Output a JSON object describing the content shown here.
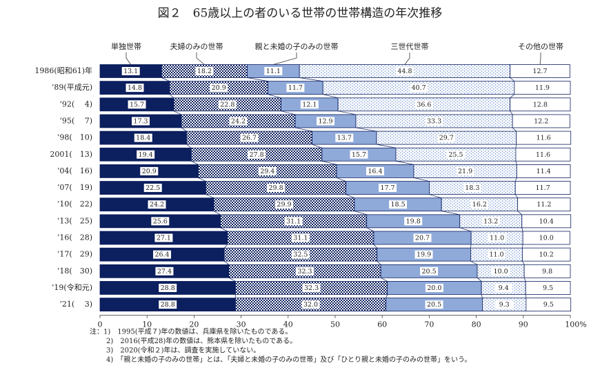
{
  "chart_data": {
    "type": "stacked-bar-horizontal",
    "title": "図２　65歳以上の者のいる世帯の世帯構造の年次推移",
    "categories": [
      "1986(昭和61)年",
      "’89(平成元)",
      "’92(　 4)",
      "’95(　 7)",
      "’98(　10)",
      "2001(　13)",
      "’04(　16)",
      "’07(　19)",
      "’10(　22)",
      "’13(　25)",
      "’16(　28)",
      "’17(　29)",
      "’18(　30)",
      "’19(令和元)",
      "’21(　 3)"
    ],
    "series": [
      {
        "name": "単独世帯",
        "color": "#0c1f5e",
        "pattern": "solid",
        "values": [
          13.1,
          14.8,
          15.7,
          17.3,
          18.4,
          19.4,
          20.9,
          22.5,
          24.2,
          25.6,
          27.1,
          26.4,
          27.4,
          28.8,
          28.8
        ],
        "value_labels": [
          "13.1",
          "14.8",
          "15.7",
          "17.3",
          "18.4",
          "19.4",
          "20.9",
          "22.5",
          "24.2",
          "25.6",
          "27.1",
          "26.4",
          "27.4",
          "28.8",
          "28.8"
        ]
      },
      {
        "name": "夫婦のみの世帯",
        "color": "#0c1f5e",
        "pattern": "checker",
        "values": [
          18.2,
          20.9,
          22.8,
          24.2,
          26.7,
          27.8,
          29.4,
          29.8,
          29.9,
          31.1,
          31.1,
          32.5,
          32.3,
          32.3,
          32.0
        ],
        "value_labels": [
          "18.2",
          "20.9",
          "22.8",
          "24.2",
          "26.7",
          "27.8",
          "29.4",
          "29.8",
          "29.9",
          "31.1",
          "31.1",
          "32.5",
          "32.3",
          "32.3",
          "32.0"
        ]
      },
      {
        "name": "親と未婚の子のみの世帯",
        "color": "#8fa9d9",
        "pattern": "solid",
        "values": [
          11.1,
          11.7,
          12.1,
          12.9,
          13.7,
          15.7,
          16.4,
          17.7,
          18.5,
          19.8,
          20.7,
          19.9,
          20.5,
          20.0,
          20.5
        ],
        "value_labels": [
          "11.1",
          "11.7",
          "12.1",
          "12.9",
          "13.7",
          "15.7",
          "16.4",
          "17.7",
          "18.5",
          "19.8",
          "20.7",
          "19.9",
          "20.5",
          "20.0",
          "20.5"
        ]
      },
      {
        "name": "三世代世帯",
        "color": "#5a82c8",
        "pattern": "dots",
        "values": [
          44.8,
          40.7,
          36.6,
          33.3,
          29.7,
          25.5,
          21.9,
          18.3,
          16.2,
          13.2,
          11.0,
          11.0,
          10.0,
          9.4,
          9.3
        ],
        "value_labels": [
          "44.8",
          "40.7",
          "36.6",
          "33.3",
          "29.7",
          "25.5",
          "21.9",
          "18.3",
          "16.2",
          "13.2",
          "11.0",
          "11.0",
          "10.0",
          "9.4",
          "9.3"
        ]
      },
      {
        "name": "その他の世帯",
        "color": "#ffffff",
        "pattern": "solid",
        "values": [
          12.7,
          11.9,
          12.8,
          12.2,
          11.6,
          11.6,
          11.4,
          11.7,
          11.2,
          10.4,
          10.0,
          10.2,
          9.8,
          9.5,
          9.5
        ],
        "value_labels": [
          "12.7",
          "11.9",
          "12.8",
          "12.2",
          "11.6",
          "11.6",
          "11.4",
          "11.7",
          "11.2",
          "10.4",
          "10.0",
          "10.2",
          "9.8",
          "9.5",
          "9.5"
        ]
      }
    ],
    "xlim": [
      0,
      100
    ],
    "xticks": [
      0,
      10,
      20,
      30,
      40,
      50,
      60,
      70,
      80,
      90,
      {
        "value": 100,
        "label": "100%"
      }
    ],
    "notes": [
      "注：1)　1995(平成７)年の数値は、兵庫県を除いたものである。",
      "2)　2016(平成28)年の数値は、熊本県を除いたものである。",
      "3)　2020(令和２)年は、調査を実施していない。",
      "4)　「親と未婚の子のみの世帯」とは、「夫婦と未婚の子のみの世帯」及び「ひとり親と未婚の子のみの世帯」をいう。"
    ]
  }
}
